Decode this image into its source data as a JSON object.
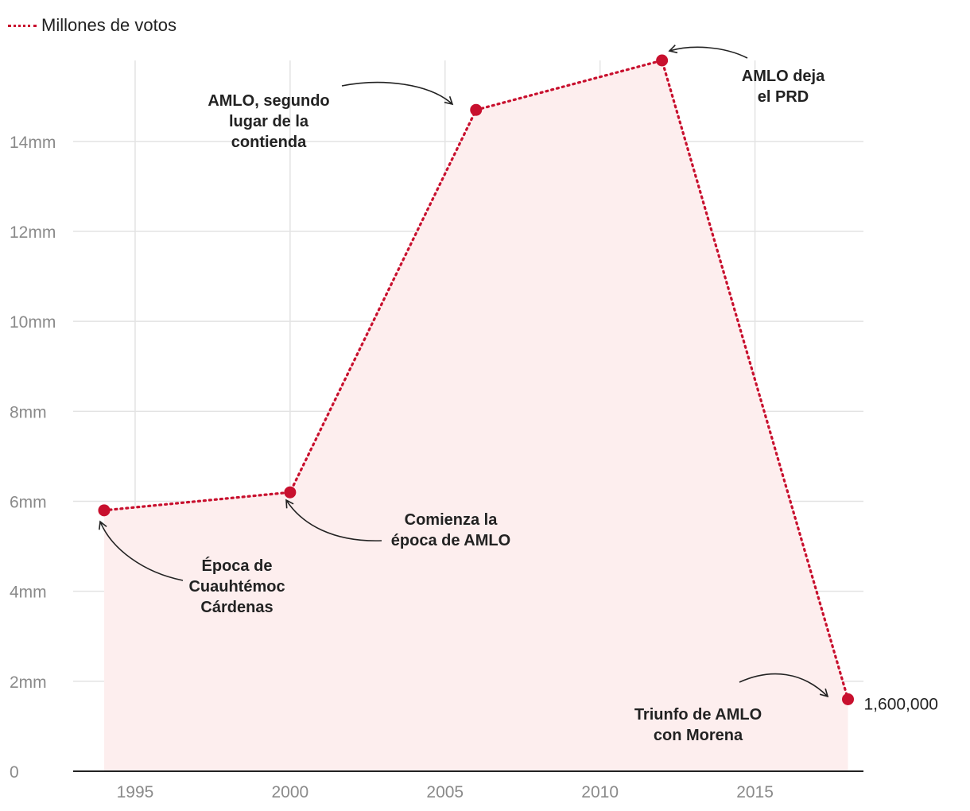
{
  "chart_data": {
    "type": "area",
    "legend": {
      "label": "Millones de votos",
      "placement": "top-left",
      "color": "#c8102e"
    },
    "series": [
      {
        "name": "Millones de votos",
        "color": "#c8102e",
        "fill": "#fdeeee",
        "style": "dotted",
        "x": [
          1994,
          2000,
          2006,
          2012,
          2018
        ],
        "values": [
          5800000,
          6200000,
          14700000,
          15800000,
          1600000
        ]
      }
    ],
    "xlim": [
      1993,
      2018.5
    ],
    "ylim": [
      0,
      15800000
    ],
    "x_ticks": [
      {
        "value": 1995,
        "label": "1995"
      },
      {
        "value": 2000,
        "label": "2000"
      },
      {
        "value": 2005,
        "label": "2005"
      },
      {
        "value": 2010,
        "label": "2010"
      },
      {
        "value": 2015,
        "label": "2015"
      }
    ],
    "y_ticks": [
      {
        "value": 0,
        "label": "0"
      },
      {
        "value": 2000000,
        "label": "2mm"
      },
      {
        "value": 4000000,
        "label": "4mm"
      },
      {
        "value": 6000000,
        "label": "6mm"
      },
      {
        "value": 8000000,
        "label": "8mm"
      },
      {
        "value": 10000000,
        "label": "10mm"
      },
      {
        "value": 12000000,
        "label": "12mm"
      },
      {
        "value": 14000000,
        "label": "14mm"
      }
    ],
    "grid": true,
    "annotations": [
      {
        "point": 0,
        "lines": [
          "Época de",
          "Cuauhtémoc",
          "Cárdenas"
        ]
      },
      {
        "point": 1,
        "lines": [
          "Comienza la",
          "época de AMLO"
        ]
      },
      {
        "point": 2,
        "lines": [
          "AMLO, segundo",
          "lugar de la",
          "contienda"
        ]
      },
      {
        "point": 3,
        "lines": [
          "AMLO deja",
          "el PRD"
        ]
      },
      {
        "point": 4,
        "lines": [
          "Triunfo de AMLO",
          "con Morena"
        ]
      }
    ],
    "value_labels": [
      {
        "point": 4,
        "text": "1,600,000"
      }
    ]
  }
}
